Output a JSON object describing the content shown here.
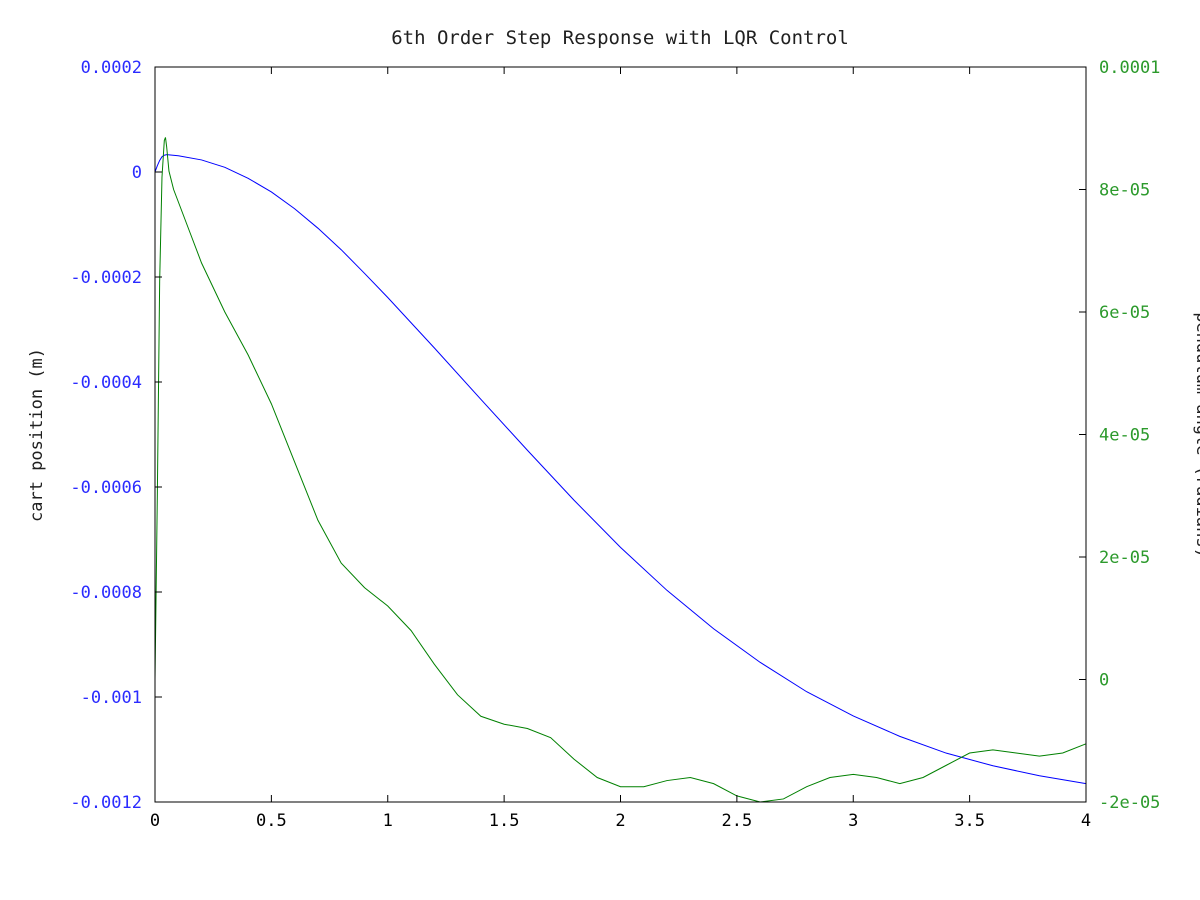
{
  "chart_data": {
    "type": "line",
    "title": "6th Order Step Response with LQR Control",
    "xlabel": "",
    "y1label": "cart position (m)",
    "y2label": "pendulum angle (radians)",
    "xlim": [
      0,
      4
    ],
    "y1lim": [
      -0.0012,
      0.0002
    ],
    "y2lim": [
      -2e-05,
      0.0001
    ],
    "x_ticks": [
      "0",
      "0.5",
      "1",
      "1.5",
      "2",
      "2.5",
      "3",
      "3.5",
      "4"
    ],
    "y1_ticks": [
      "0.0002",
      "0",
      "-0.0002",
      "-0.0004",
      "-0.0006",
      "-0.0008",
      "-0.001",
      "-0.0012"
    ],
    "y2_ticks": [
      "0.0001",
      "8e-05",
      "6e-05",
      "4e-05",
      "2e-05",
      "0",
      "-2e-05"
    ],
    "grid": false,
    "colors": {
      "cart": "#0000ff",
      "pendulum": "#008000",
      "y1_ticks": "#2b2bff",
      "y2_ticks": "#2c9a2c"
    },
    "series": [
      {
        "axis": "left",
        "x": [
          0,
          0.01,
          0.02,
          0.03,
          0.04,
          0.05,
          0.1,
          0.2,
          0.3,
          0.4,
          0.5,
          0.6,
          0.7,
          0.8,
          0.9,
          1.0,
          1.2,
          1.4,
          1.6,
          1.8,
          2.0,
          2.2,
          2.4,
          2.6,
          2.8,
          3.0,
          3.2,
          3.4,
          3.6,
          3.8,
          4.0
        ],
        "y": [
          0,
          1.2e-05,
          2.2e-05,
          2.9e-05,
          3.2e-05,
          3.3e-05,
          3.1e-05,
          2.3e-05,
          9e-06,
          -1.2e-05,
          -3.8e-05,
          -7e-05,
          -0.000107,
          -0.000148,
          -0.000193,
          -0.000239,
          -0.000335,
          -0.000433,
          -0.00053,
          -0.000625,
          -0.000715,
          -0.000797,
          -0.00087,
          -0.000934,
          -0.00099,
          -0.001036,
          -0.001075,
          -0.001107,
          -0.001131,
          -0.00115,
          -0.001165
        ]
      },
      {
        "axis": "right",
        "x": [
          0,
          0.01,
          0.02,
          0.03,
          0.04,
          0.045,
          0.05,
          0.06,
          0.08,
          0.1,
          0.15,
          0.2,
          0.3,
          0.4,
          0.5,
          0.6,
          0.7,
          0.8,
          0.9,
          1.0,
          1.1,
          1.2,
          1.3,
          1.4,
          1.5,
          1.6,
          1.7,
          1.8,
          1.9,
          2.0,
          2.1,
          2.2,
          2.3,
          2.4,
          2.5,
          2.6,
          2.7,
          2.8,
          2.9,
          3.0,
          3.1,
          3.2,
          3.3,
          3.4,
          3.5,
          3.6,
          3.7,
          3.8,
          3.9,
          4.0
        ],
        "y": [
          0,
          3e-05,
          6.5e-05,
          8.2e-05,
          8.8e-05,
          8.85e-05,
          8.7e-05,
          8.3e-05,
          8e-05,
          7.8e-05,
          7.3e-05,
          6.8e-05,
          6e-05,
          5.3e-05,
          4.5e-05,
          3.55e-05,
          2.6e-05,
          1.9e-05,
          1.5e-05,
          1.2e-05,
          8e-06,
          2.5e-06,
          -2.5e-06,
          -6e-06,
          -7.3e-06,
          -8e-06,
          -9.5e-06,
          -1.3e-05,
          -1.6e-05,
          -1.75e-05,
          -1.75e-05,
          -1.65e-05,
          -1.6e-05,
          -1.7e-05,
          -1.9e-05,
          -2e-05,
          -1.95e-05,
          -1.75e-05,
          -1.6e-05,
          -1.55e-05,
          -1.6e-05,
          -1.7e-05,
          -1.6e-05,
          -1.4e-05,
          -1.2e-05,
          -1.15e-05,
          -1.2e-05,
          -1.25e-05,
          -1.2e-05,
          -1.05e-05
        ]
      }
    ]
  }
}
